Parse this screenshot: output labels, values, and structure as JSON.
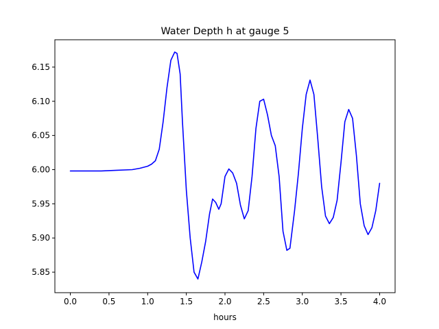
{
  "chart_data": {
    "type": "line",
    "title": "Water Depth h at gauge 5",
    "xlabel": "hours",
    "ylabel": "",
    "xlim": [
      -0.2,
      4.2
    ],
    "ylim": [
      5.82,
      6.19
    ],
    "x_ticks": [
      0.0,
      0.5,
      1.0,
      1.5,
      2.0,
      2.5,
      3.0,
      3.5,
      4.0
    ],
    "x_tick_labels": [
      "0.0",
      "0.5",
      "1.0",
      "1.5",
      "2.0",
      "2.5",
      "3.0",
      "3.5",
      "4.0"
    ],
    "y_ticks": [
      5.85,
      5.9,
      5.95,
      6.0,
      6.05,
      6.1,
      6.15
    ],
    "y_tick_labels": [
      "5.85",
      "5.90",
      "5.95",
      "6.00",
      "6.05",
      "6.10",
      "6.15"
    ],
    "grid": false,
    "series": [
      {
        "color": "#0000ff",
        "x": [
          0.0,
          0.2,
          0.4,
          0.6,
          0.8,
          0.9,
          1.0,
          1.05,
          1.1,
          1.15,
          1.2,
          1.25,
          1.3,
          1.35,
          1.38,
          1.42,
          1.45,
          1.5,
          1.55,
          1.6,
          1.65,
          1.7,
          1.75,
          1.8,
          1.84,
          1.88,
          1.92,
          1.95,
          2.0,
          2.05,
          2.1,
          2.15,
          2.2,
          2.25,
          2.3,
          2.35,
          2.4,
          2.45,
          2.5,
          2.55,
          2.6,
          2.65,
          2.7,
          2.75,
          2.8,
          2.84,
          2.9,
          2.95,
          3.0,
          3.05,
          3.1,
          3.15,
          3.2,
          3.25,
          3.3,
          3.35,
          3.4,
          3.45,
          3.5,
          3.55,
          3.6,
          3.65,
          3.7,
          3.75,
          3.8,
          3.85,
          3.9,
          3.95,
          4.0
        ],
        "y": [
          5.998,
          5.998,
          5.998,
          5.999,
          6.0,
          6.002,
          6.005,
          6.008,
          6.013,
          6.03,
          6.07,
          6.12,
          6.16,
          6.172,
          6.17,
          6.14,
          6.07,
          5.97,
          5.9,
          5.85,
          5.84,
          5.865,
          5.895,
          5.935,
          5.957,
          5.952,
          5.942,
          5.95,
          5.99,
          6.001,
          5.995,
          5.98,
          5.948,
          5.928,
          5.94,
          5.99,
          6.06,
          6.1,
          6.103,
          6.08,
          6.05,
          6.035,
          5.99,
          5.91,
          5.882,
          5.885,
          5.94,
          5.995,
          6.06,
          6.11,
          6.131,
          6.11,
          6.045,
          5.975,
          5.932,
          5.921,
          5.93,
          5.955,
          6.01,
          6.07,
          6.088,
          6.075,
          6.02,
          5.95,
          5.918,
          5.905,
          5.915,
          5.94,
          5.98
        ]
      }
    ]
  }
}
